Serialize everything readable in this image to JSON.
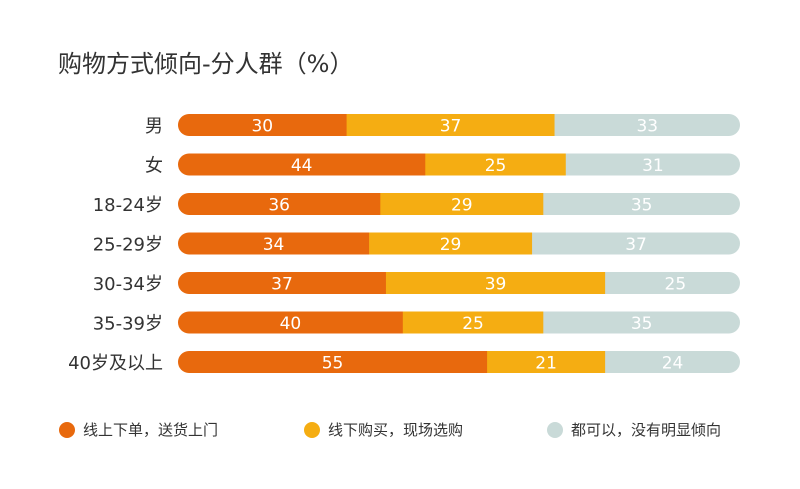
{
  "colors": {
    "offline": "#E8690D",
    "online": "#F5AD12",
    "neutral": "#C9DAD8",
    "label_text": "#ffffff",
    "category_text": "#333333",
    "title_text": "#333333"
  },
  "chart_data": {
    "type": "bar",
    "orientation": "horizontal",
    "stacked": true,
    "normalized_to": 100,
    "title": "购物方式倾向-分人群（%）",
    "categories": [
      "男",
      "女",
      "18-24岁",
      "25-29岁",
      "30-34岁",
      "35-39岁",
      "40岁及以上"
    ],
    "series": [
      {
        "name": "线上下单，送货上门",
        "color": "#E8690D",
        "values": [
          30,
          44,
          36,
          34,
          37,
          40,
          55
        ]
      },
      {
        "name": "线下购买，现场选购",
        "color": "#F5AD12",
        "values": [
          37,
          25,
          29,
          29,
          39,
          25,
          21
        ]
      },
      {
        "name": "都可以，没有明显倾向",
        "color": "#C9DAD8",
        "values": [
          33,
          31,
          35,
          37,
          25,
          35,
          24
        ]
      }
    ],
    "xlim": [
      0,
      100
    ],
    "grid": false,
    "legend_position": "bottom"
  }
}
